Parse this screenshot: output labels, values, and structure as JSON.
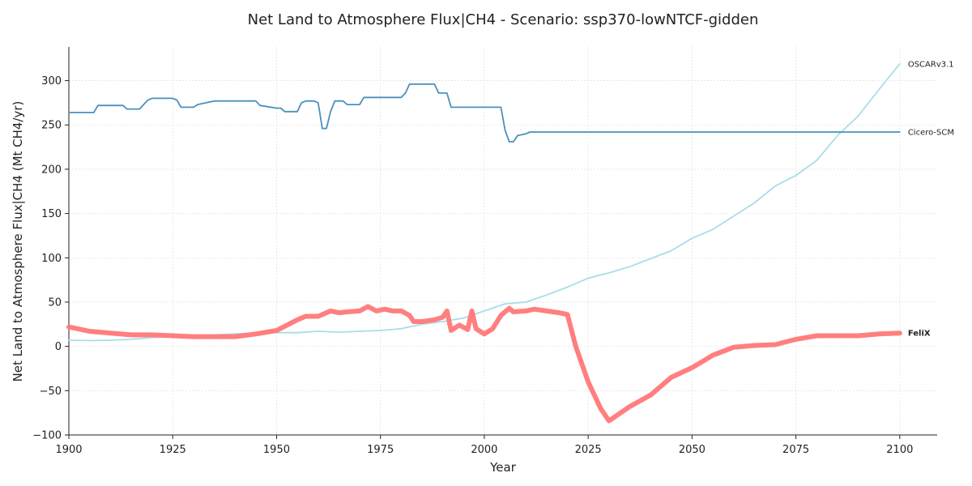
{
  "chart_data": {
    "type": "line",
    "title": "Net Land to Atmosphere Flux|CH4 - Scenario: ssp370-lowNTCF-gidden",
    "xlabel": "Year",
    "ylabel": "Net Land to Atmosphere Flux|CH4 (Mt CH4/yr)",
    "xlim": [
      1900,
      2109
    ],
    "ylim": [
      -100,
      338
    ],
    "xticks": [
      1900,
      1925,
      1950,
      1975,
      2000,
      2025,
      2050,
      2075,
      2100
    ],
    "yticks": [
      -100,
      -50,
      0,
      50,
      100,
      150,
      200,
      250,
      300
    ],
    "xtick_labels": [
      "1900",
      "1925",
      "1950",
      "1975",
      "2000",
      "2025",
      "2050",
      "2075",
      "2100"
    ],
    "ytick_labels": [
      "−100",
      "−50",
      "0",
      "50",
      "100",
      "150",
      "200",
      "250",
      "300"
    ],
    "grid": true,
    "series": [
      {
        "name": "OSCARv3.1",
        "color": "#a8dde9",
        "x": [
          1900,
          1905,
          1910,
          1915,
          1920,
          1925,
          1930,
          1935,
          1940,
          1945,
          1950,
          1955,
          1960,
          1965,
          1970,
          1975,
          1980,
          1985,
          1990,
          1995,
          2000,
          2005,
          2010,
          2015,
          2020,
          2025,
          2030,
          2035,
          2040,
          2045,
          2050,
          2055,
          2060,
          2065,
          2070,
          2075,
          2080,
          2085,
          2090,
          2095,
          2100
        ],
        "values": [
          7,
          6.5,
          7,
          8,
          10,
          11,
          12,
          13,
          14,
          15,
          15.5,
          15.5,
          17,
          16,
          17,
          18,
          20,
          25,
          28,
          32,
          40,
          48,
          50,
          58,
          67,
          77,
          83,
          90,
          99,
          108,
          122,
          132,
          147,
          162,
          181,
          193,
          210,
          238,
          260,
          290,
          319
        ]
      },
      {
        "name": "Cicero-SCM",
        "color": "#4a90be",
        "x": [
          1900,
          1906,
          1907,
          1913,
          1914,
          1917,
          1919,
          1920,
          1925,
          1926,
          1927,
          1930,
          1931,
          1935,
          1936,
          1945,
          1946,
          1950,
          1951,
          1952,
          1955,
          1956,
          1957,
          1959,
          1960,
          1961,
          1962,
          1963,
          1964,
          1966,
          1967,
          1970,
          1971,
          1975,
          1980,
          1981,
          1982,
          1988,
          1989,
          1991,
          1992,
          2004,
          2005,
          2006,
          2007,
          2008,
          2009,
          2010,
          2011,
          2012,
          2100
        ],
        "values": [
          264,
          264,
          272,
          272,
          268,
          268,
          278,
          280,
          280,
          278,
          270,
          270,
          273,
          277,
          277,
          277,
          272,
          269,
          269,
          265,
          265,
          275,
          277,
          277,
          275,
          246,
          246,
          265,
          277,
          277,
          273,
          273,
          281,
          281,
          281,
          286,
          296,
          296,
          286,
          286,
          270,
          270,
          244,
          231,
          231,
          238,
          239,
          240,
          242,
          242,
          242
        ]
      },
      {
        "name": "FeliX",
        "color": "#ff7f7f",
        "x": [
          1900,
          1905,
          1910,
          1915,
          1920,
          1925,
          1930,
          1935,
          1940,
          1945,
          1950,
          1955,
          1957,
          1960,
          1962,
          1963,
          1965,
          1967,
          1970,
          1972,
          1974,
          1976,
          1978,
          1980,
          1982,
          1983,
          1985,
          1988,
          1990,
          1991,
          1992,
          1994,
          1996,
          1997,
          1998,
          2000,
          2002,
          2004,
          2006,
          2007,
          2010,
          2012,
          2015,
          2018,
          2020,
          2022,
          2025,
          2028,
          2030,
          2035,
          2040,
          2045,
          2050,
          2055,
          2060,
          2065,
          2070,
          2075,
          2080,
          2085,
          2090,
          2095,
          2100
        ],
        "values": [
          22,
          17,
          15,
          13,
          13,
          12,
          11,
          11,
          11,
          14,
          18,
          30,
          34,
          34,
          38,
          40,
          38,
          39,
          40,
          45,
          40,
          42,
          40,
          40,
          35,
          28,
          28,
          30,
          33,
          40,
          18,
          24,
          19,
          40,
          20,
          14,
          20,
          35,
          43,
          39,
          40,
          42,
          40,
          38,
          36,
          0,
          -40,
          -70,
          -84,
          -68,
          -55,
          -35,
          -24,
          -10,
          -1,
          1,
          2,
          8,
          12,
          12,
          12,
          14,
          15
        ]
      }
    ]
  }
}
